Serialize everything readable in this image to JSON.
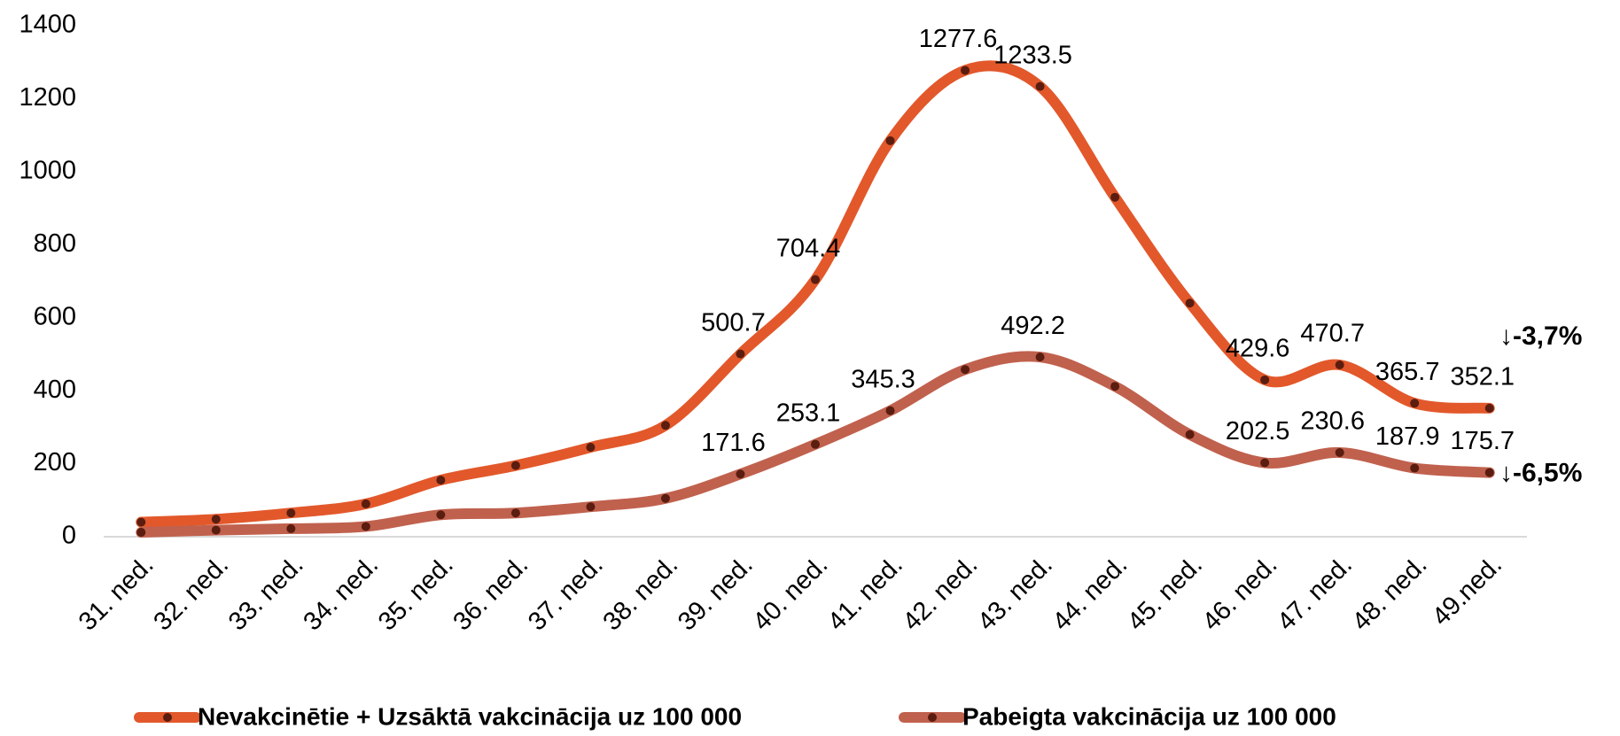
{
  "chart_data": {
    "type": "line",
    "categories": [
      "31. ned.",
      "32. ned.",
      "33. ned.",
      "34. ned.",
      "35. ned.",
      "36. ned.",
      "37. ned.",
      "38. ned.",
      "39. ned.",
      "40. ned.",
      "41. ned.",
      "42. ned.",
      "43. ned.",
      "44. ned.",
      "45. ned.",
      "46. ned.",
      "47. ned.",
      "48. ned.",
      "49.ned."
    ],
    "series": [
      {
        "name": "Nevakcinētie +  Uzsāktā vakcinācija uz 100 000",
        "color": "#e2582b",
        "values": [
          40,
          48,
          65,
          90,
          155,
          195,
          245,
          305,
          500.7,
          704.4,
          1085,
          1277.6,
          1233.5,
          930,
          640,
          429.6,
          470.7,
          365.7,
          352.1
        ],
        "value_labels": [
          null,
          null,
          null,
          null,
          null,
          null,
          null,
          null,
          "500.7",
          "704.4",
          null,
          "1277.6",
          "1233.5",
          null,
          null,
          "429.6",
          "470.7",
          "365.7",
          "352.1"
        ]
      },
      {
        "name": "Pabeigta vakcinācija uz 100 000",
        "color": "#c0614e",
        "values": [
          12,
          18,
          22,
          28,
          60,
          65,
          82,
          105,
          171.6,
          253.1,
          345.3,
          458,
          492.2,
          412,
          280,
          202.5,
          230.6,
          187.9,
          175.7
        ],
        "value_labels": [
          null,
          null,
          null,
          null,
          null,
          null,
          null,
          null,
          "171.6",
          "253.1",
          "345.3",
          null,
          "492.2",
          null,
          null,
          "202.5",
          "230.6",
          "187.9",
          "175.7"
        ]
      }
    ],
    "ylim": [
      0,
      1400
    ],
    "yticks": [
      0,
      200,
      400,
      600,
      800,
      1000,
      1200,
      1400
    ],
    "grid": false,
    "legend": "bottom",
    "annotations": [
      {
        "text": "↓-3,7%",
        "color": "#ff0000"
      },
      {
        "text": "↓-6,5%",
        "color": "#ff0000"
      }
    ]
  }
}
